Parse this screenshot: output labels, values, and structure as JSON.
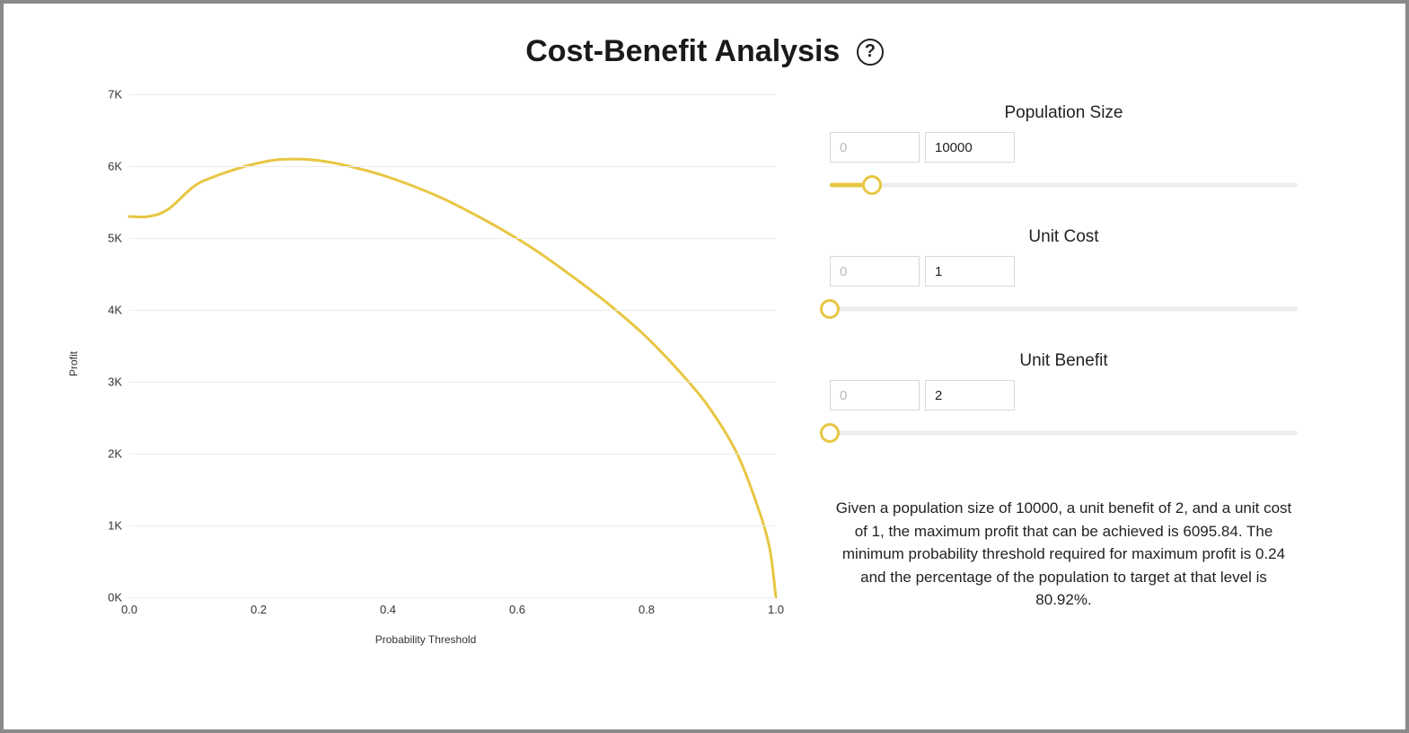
{
  "title": "Cost-Benefit Analysis",
  "help_glyph": "?",
  "chart": {
    "type": "line",
    "xlabel": "Probability Threshold",
    "ylabel": "Profit",
    "xlim": [
      0.0,
      1.0
    ],
    "ylim": [
      0,
      7000
    ],
    "xticks": [
      0.0,
      0.2,
      0.4,
      0.6,
      0.8,
      1.0
    ],
    "xtick_labels": [
      "0.0",
      "0.2",
      "0.4",
      "0.6",
      "0.8",
      "1.0"
    ],
    "yticks": [
      0,
      1000,
      2000,
      3000,
      4000,
      5000,
      6000,
      7000
    ],
    "ytick_labels": [
      "0K",
      "1K",
      "2K",
      "3K",
      "4K",
      "5K",
      "6K",
      "7K"
    ],
    "line_color": "#e8c642",
    "line_width": 3,
    "grid_color": "#ececec",
    "background_color": "#ffffff",
    "label_fontsize": 12,
    "tick_fontsize": 13,
    "series": [
      {
        "x": 0.0,
        "y": 5300
      },
      {
        "x": 0.03,
        "y": 5300
      },
      {
        "x": 0.06,
        "y": 5400
      },
      {
        "x": 0.1,
        "y": 5720
      },
      {
        "x": 0.13,
        "y": 5850
      },
      {
        "x": 0.18,
        "y": 6000
      },
      {
        "x": 0.22,
        "y": 6080
      },
      {
        "x": 0.24,
        "y": 6096
      },
      {
        "x": 0.28,
        "y": 6090
      },
      {
        "x": 0.33,
        "y": 6020
      },
      {
        "x": 0.4,
        "y": 5850
      },
      {
        "x": 0.48,
        "y": 5570
      },
      {
        "x": 0.55,
        "y": 5250
      },
      {
        "x": 0.62,
        "y": 4880
      },
      {
        "x": 0.68,
        "y": 4500
      },
      {
        "x": 0.74,
        "y": 4090
      },
      {
        "x": 0.8,
        "y": 3620
      },
      {
        "x": 0.86,
        "y": 3050
      },
      {
        "x": 0.9,
        "y": 2600
      },
      {
        "x": 0.94,
        "y": 2000
      },
      {
        "x": 0.97,
        "y": 1310
      },
      {
        "x": 0.99,
        "y": 700
      },
      {
        "x": 1.0,
        "y": 0
      }
    ]
  },
  "controls": {
    "population": {
      "label": "Population Size",
      "min_placeholder": "0",
      "value": "10000",
      "slider_percent": 9
    },
    "unit_cost": {
      "label": "Unit Cost",
      "min_placeholder": "0",
      "value": "1",
      "slider_percent": 0
    },
    "unit_benefit": {
      "label": "Unit Benefit",
      "min_placeholder": "0",
      "value": "2",
      "slider_percent": 0
    }
  },
  "summary_text": "Given a population size of 10000, a unit benefit of 2, and a unit cost of 1, the maximum profit that can be achieved is 6095.84. The minimum probability threshold required for maximum profit is 0.24 and the percentage of the population to target at that level is 80.92%.",
  "accent_color": "#e8c642"
}
